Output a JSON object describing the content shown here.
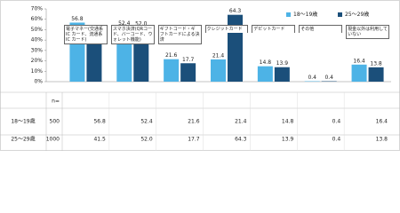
{
  "chart_data": {
    "type": "bar",
    "categories": [
      "電子マネー(交通系IC カード、流通系IC カード)",
      "スマホ決済(QRコード、バーコード、ウォレット機能)",
      "ギフトコード・ギフトカードによる決済",
      "クレジットカード",
      "デビットカード",
      "その他",
      "現金以外は利用していない"
    ],
    "series": [
      {
        "name": "18～19歳",
        "color": "#4db3e6",
        "n": 500,
        "values": [
          56.8,
          52.4,
          21.6,
          21.4,
          14.8,
          0.4,
          16.4
        ]
      },
      {
        "name": "25～29歳",
        "color": "#1b4f7a",
        "n": 1000,
        "values": [
          41.5,
          52.0,
          17.7,
          64.3,
          13.9,
          0.4,
          13.8
        ],
        "value_labels": [
          "41.5",
          "52.0",
          "17.7",
          "64.3",
          "13.9",
          "0.4",
          "13.8"
        ]
      }
    ],
    "n_label": "n=",
    "ylim": [
      0,
      70
    ],
    "yticks": [
      {
        "value": 0,
        "label": "0%"
      },
      {
        "value": 10,
        "label": "10%"
      },
      {
        "value": 20,
        "label": "20%"
      },
      {
        "value": 30,
        "label": "30%"
      },
      {
        "value": 40,
        "label": "40%"
      },
      {
        "value": 50,
        "label": "50%"
      },
      {
        "value": 60,
        "label": "60%"
      },
      {
        "value": 70,
        "label": "70%"
      }
    ],
    "legend": "top-right"
  }
}
